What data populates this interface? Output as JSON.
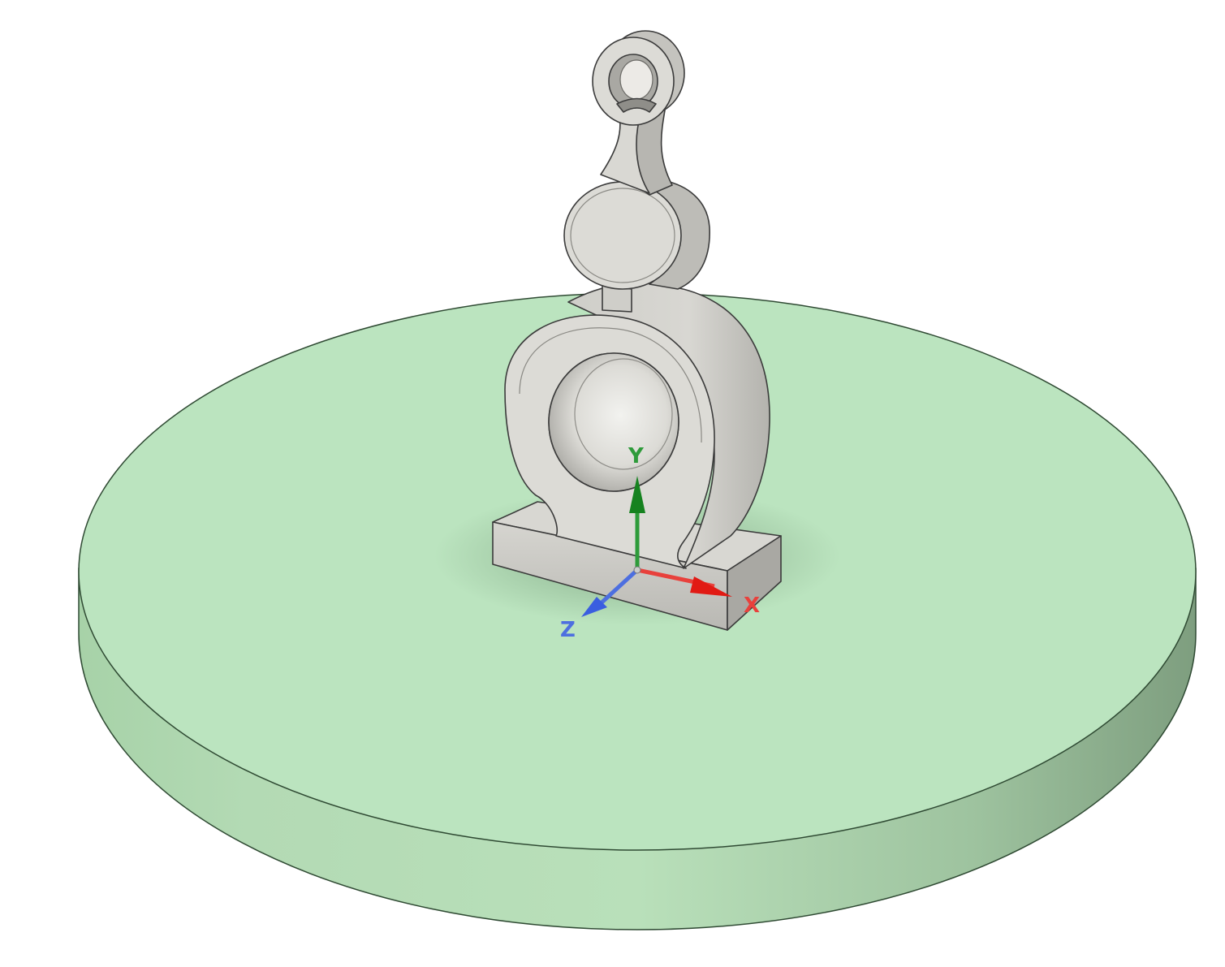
{
  "viewport": {
    "background": "#ffffff",
    "build_plate": {
      "top_color": "#bbe4bf",
      "edge_color": "#a8cfa8",
      "outline_color": "#2f4a33"
    },
    "part": {
      "body_color": "#dcdbd6",
      "shadow_color": "#9c9b96",
      "outline_color": "#3b3b3b"
    },
    "triad": {
      "x_label": "X",
      "y_label": "Y",
      "z_label": "Z",
      "x_color": "#e8413c",
      "y_color": "#2e9b3a",
      "z_color": "#4d6fe0"
    }
  }
}
